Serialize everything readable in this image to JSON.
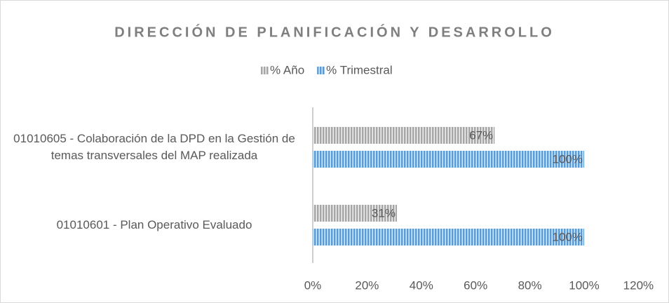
{
  "chart_data": {
    "type": "barh",
    "title": "DIRECCIÓN DE PLANIFICACIÓN Y DESARROLLO",
    "categories": [
      "01010605 - Colaboración de la DPD en la Gestión de temas transversales del MAP realizada",
      "01010601 - Plan Operativo Evaluado"
    ],
    "series": [
      {
        "name": "% Año",
        "color": "#a6a6a6",
        "values": [
          67,
          31
        ],
        "value_labels": [
          "67%",
          "31%"
        ]
      },
      {
        "name": "% Trimestral",
        "color": "#5b9bd5",
        "values": [
          100,
          100
        ],
        "value_labels": [
          "100%",
          "100%"
        ]
      }
    ],
    "xlim": [
      0,
      120
    ],
    "xticks": [
      {
        "value": 0,
        "label": "0%"
      },
      {
        "value": 20,
        "label": "20%"
      },
      {
        "value": 40,
        "label": "40%"
      },
      {
        "value": 60,
        "label": "60%"
      },
      {
        "value": 80,
        "label": "80%"
      },
      {
        "value": 100,
        "label": "100%"
      },
      {
        "value": 120,
        "label": "120%"
      }
    ],
    "legend": "top"
  }
}
